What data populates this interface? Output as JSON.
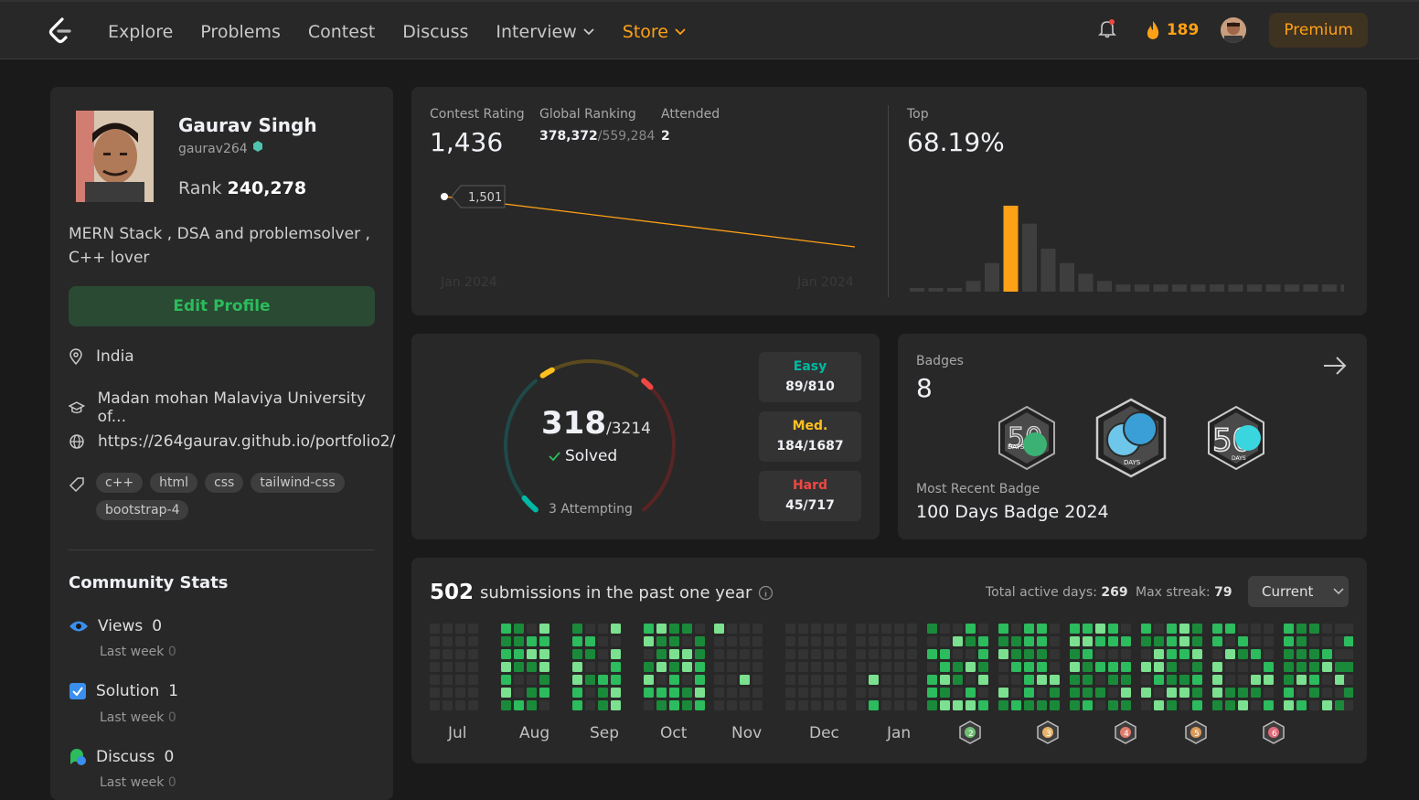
{
  "nav": {
    "links": [
      "Explore",
      "Problems",
      "Contest",
      "Discuss",
      "Interview",
      "Store"
    ],
    "streak": "189",
    "premium": "Premium"
  },
  "profile": {
    "name": "Gaurav Singh",
    "username": "gaurav264",
    "rank_label": "Rank",
    "rank": "240,278",
    "bio": "MERN Stack , DSA and problemsolver , C++ lover",
    "edit": "Edit Profile",
    "location": "India",
    "university": "Madan mohan Malaviya University of...",
    "website": "https://264gaurav.github.io/portfolio2/",
    "skills": [
      "c++",
      "html",
      "css",
      "tailwind-css",
      "bootstrap-4"
    ]
  },
  "community": {
    "title": "Community Stats",
    "last_week_label": "Last week",
    "views_label": "Views",
    "views": "0",
    "views_lw": "0",
    "solution_label": "Solution",
    "solution": "1",
    "solution_lw": "0",
    "discuss_label": "Discuss",
    "discuss": "0",
    "discuss_lw": "0"
  },
  "contest": {
    "rating_label": "Contest Rating",
    "rating": "1,436",
    "global_label": "Global Ranking",
    "global": "378,372",
    "global_total": "/559,284",
    "attended_label": "Attended",
    "attended": "2",
    "tooltip": "1,501",
    "x_start": "Jan 2024",
    "x_end": "Jan 2024",
    "top_label": "Top",
    "top": "68.19%",
    "rating_points": [
      1501,
      1436
    ],
    "histogram": [
      1,
      1,
      1,
      3,
      8,
      24,
      19,
      12,
      8,
      5,
      3,
      2,
      2,
      2,
      2,
      2,
      2,
      2,
      2,
      2,
      2,
      2,
      2,
      2
    ],
    "histogram_highlight_index": 5,
    "colors": {
      "line": "#ffa116",
      "highlight": "#ffa116",
      "bar": "#3e3e3e"
    }
  },
  "solved": {
    "solved": "318",
    "total": "/3214",
    "solved_label": "Solved",
    "attempting": "3 Attempting",
    "easy_label": "Easy",
    "easy": "89/810",
    "med_label": "Med.",
    "med": "184/1687",
    "hard_label": "Hard",
    "hard": "45/717",
    "easy_fraction": 0.1099,
    "med_fraction": 0.1091,
    "hard_fraction": 0.0628,
    "colors": {
      "easy": "#00b8a3",
      "med": "#ffc01e",
      "hard": "#ef4743"
    }
  },
  "badges": {
    "label": "Badges",
    "count": "8",
    "recent_label": "Most Recent Badge",
    "recent": "100 Days Badge 2024",
    "badge_texts": [
      "50",
      "DAYS",
      "DAYS",
      "50",
      "DAYS"
    ]
  },
  "submissions": {
    "count": "502",
    "text": "submissions in the past one year",
    "active_label": "Total active days:",
    "active": "269",
    "streak_label": "Max streak:",
    "streak": "79",
    "dropdown": "Current",
    "months": [
      "Jul",
      "Aug",
      "Sep",
      "Oct",
      "Nov",
      "Dec",
      "Jan"
    ],
    "badge_numbers": [
      "2",
      "3",
      "4",
      "5",
      "6"
    ]
  }
}
